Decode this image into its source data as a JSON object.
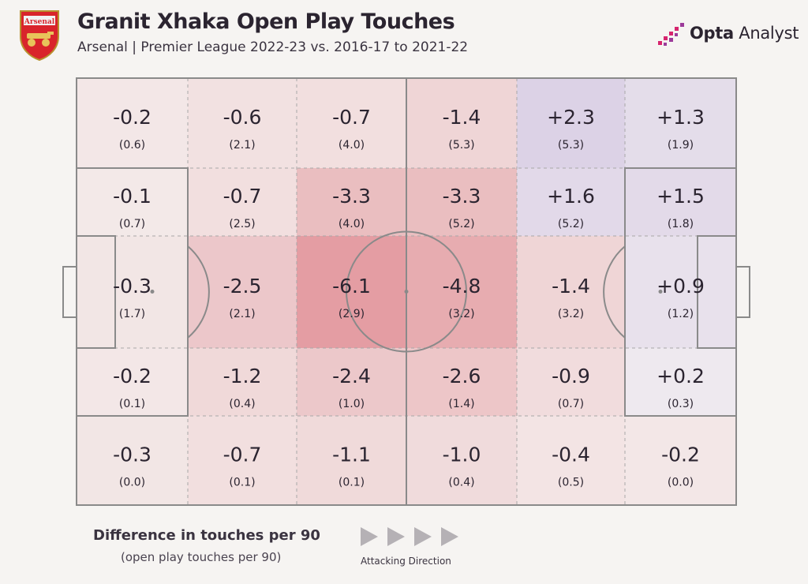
{
  "header": {
    "title": "Granit Xhaka Open Play Touches",
    "subtitle": "Arsenal | Premier League 2022-23 vs. 2016-17 to 2021-22",
    "crest_text": "Arsenal",
    "brand_bold": "Opta",
    "brand_light": " Analyst"
  },
  "colors": {
    "negative": "#d65c68",
    "positive": "#9a79c8",
    "line": "#8a8a8a",
    "background": "#f6f4f2",
    "crest_red": "#d9242b",
    "brand_pink": "#d6246e"
  },
  "legend": {
    "title": "Difference in touches per 90",
    "subtitle": "(open play touches per 90)",
    "direction": "Attacking Direction"
  },
  "chart_data": {
    "type": "heatmap",
    "title": "Granit Xhaka Open Play Touches",
    "columns": 6,
    "rows": 5,
    "value_description": "Difference in touches per 90",
    "zones": [
      [
        {
          "diff": "-0.2",
          "value": "(0.6)"
        },
        {
          "diff": "-0.6",
          "value": "(2.1)"
        },
        {
          "diff": "-0.7",
          "value": "(4.0)"
        },
        {
          "diff": "-1.4",
          "value": "(5.3)"
        },
        {
          "diff": "+2.3",
          "value": "(5.3)"
        },
        {
          "diff": "+1.3",
          "value": "(1.9)"
        }
      ],
      [
        {
          "diff": "-0.1",
          "value": "(0.7)"
        },
        {
          "diff": "-0.7",
          "value": "(2.5)"
        },
        {
          "diff": "-3.3",
          "value": "(4.0)"
        },
        {
          "diff": "-3.3",
          "value": "(5.2)"
        },
        {
          "diff": "+1.6",
          "value": "(5.2)"
        },
        {
          "diff": "+1.5",
          "value": "(1.8)"
        }
      ],
      [
        {
          "diff": "-0.3",
          "value": "(1.7)"
        },
        {
          "diff": "-2.5",
          "value": "(2.1)"
        },
        {
          "diff": "-6.1",
          "value": "(2.9)"
        },
        {
          "diff": "-4.8",
          "value": "(3.2)"
        },
        {
          "diff": "-1.4",
          "value": "(3.2)"
        },
        {
          "diff": "+0.9",
          "value": "(1.2)"
        }
      ],
      [
        {
          "diff": "-0.2",
          "value": "(0.1)"
        },
        {
          "diff": "-1.2",
          "value": "(0.4)"
        },
        {
          "diff": "-2.4",
          "value": "(1.0)"
        },
        {
          "diff": "-2.6",
          "value": "(1.4)"
        },
        {
          "diff": "-0.9",
          "value": "(0.7)"
        },
        {
          "diff": "+0.2",
          "value": "(0.3)"
        }
      ],
      [
        {
          "diff": "-0.3",
          "value": "(0.0)"
        },
        {
          "diff": "-0.7",
          "value": "(0.1)"
        },
        {
          "diff": "-1.1",
          "value": "(0.1)"
        },
        {
          "diff": "-1.0",
          "value": "(0.4)"
        },
        {
          "diff": "-0.4",
          "value": "(0.5)"
        },
        {
          "diff": "-0.2",
          "value": "(0.0)"
        }
      ]
    ]
  }
}
